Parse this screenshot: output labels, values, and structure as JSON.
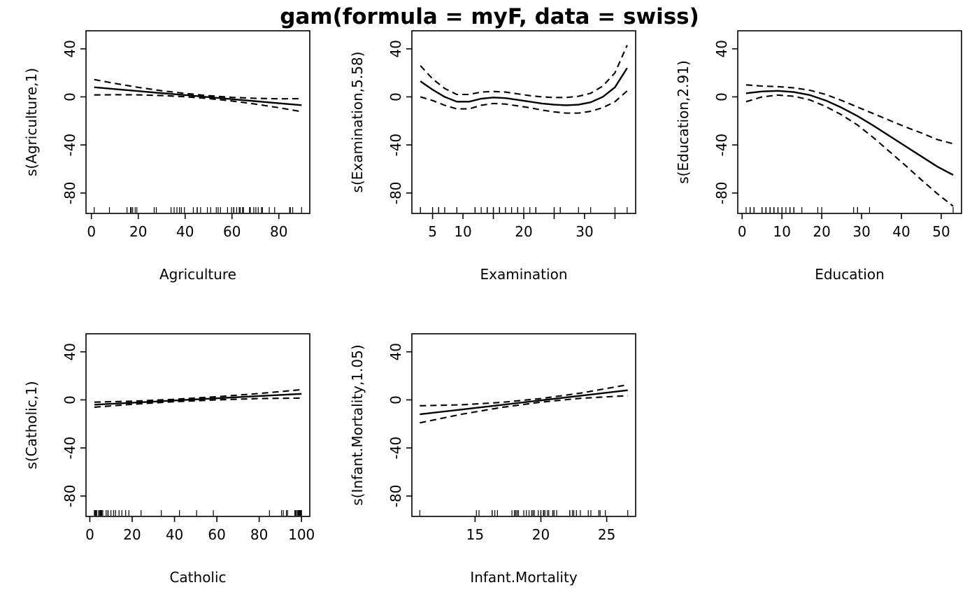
{
  "title": "gam(formula = myF, data = swiss)",
  "colors": {
    "background": "#ffffff",
    "line": "#000000"
  },
  "chart_data": [
    {
      "type": "line",
      "id": "agriculture",
      "xlabel": "Agriculture",
      "ylabel": "s(Agriculture,1)",
      "xlim": [
        -2.3,
        93.2
      ],
      "ylim": [
        -97,
        55
      ],
      "xticks": [
        0,
        20,
        40,
        60,
        80
      ],
      "xtick_labels": [
        "0",
        "20",
        "40",
        "60",
        "80"
      ],
      "yticks": [
        -80,
        -40,
        0,
        40
      ],
      "ytick_labels": [
        "-80",
        "-40",
        "0",
        "40"
      ],
      "series": [
        {
          "name": "fit",
          "style": "solid",
          "x": [
            1.2,
            10,
            20,
            30,
            40,
            50,
            60,
            70,
            80,
            89.7
          ],
          "y": [
            8.0,
            6.5,
            4.8,
            3.1,
            1.5,
            -0.2,
            -1.9,
            -3.6,
            -5.3,
            -6.9
          ]
        },
        {
          "name": "upper-ci",
          "style": "dashed",
          "x": [
            1.2,
            10,
            20,
            30,
            40,
            50,
            60,
            70,
            80,
            89.7
          ],
          "y": [
            14.4,
            11.2,
            7.9,
            5.1,
            2.9,
            1.0,
            -0.4,
            -1.2,
            -1.6,
            -1.5
          ]
        },
        {
          "name": "lower-ci",
          "style": "dashed",
          "x": [
            1.2,
            10,
            20,
            30,
            40,
            50,
            60,
            70,
            80,
            89.7
          ],
          "y": [
            1.6,
            1.8,
            1.7,
            1.1,
            0.1,
            -1.4,
            -3.4,
            -6.0,
            -9.0,
            -12.3
          ]
        }
      ],
      "rug": [
        17,
        45.1,
        39.7,
        36.5,
        43.5,
        35.3,
        70.2,
        67.8,
        53.3,
        45.2,
        64.5,
        62,
        67.5,
        60.7,
        69.3,
        72.6,
        34,
        19.4,
        15.2,
        73,
        59.8,
        55.1,
        50.9,
        54.1,
        71.2,
        58.1,
        63.5,
        60.8,
        26.8,
        49.5,
        85.9,
        84.9,
        89.7,
        78.2,
        64.9,
        75.9,
        84.6,
        63.1,
        38.4,
        7.7,
        16.7,
        17.6,
        37.6,
        18.7,
        1.2,
        46.6,
        27.7
      ]
    },
    {
      "type": "line",
      "id": "examination",
      "xlabel": "Examination",
      "ylabel": "s(Examination,5.58)",
      "xlim": [
        1.6,
        38.4
      ],
      "ylim": [
        -97,
        55
      ],
      "xticks": [
        5,
        10,
        15,
        20,
        25,
        30,
        35
      ],
      "xtick_labels": [
        "5",
        "10",
        "",
        "20",
        "",
        "30",
        ""
      ],
      "yticks": [
        -80,
        -40,
        0,
        40
      ],
      "ytick_labels": [
        "-80",
        "-40",
        "0",
        "40"
      ],
      "series": [
        {
          "name": "fit",
          "style": "solid",
          "x": [
            3,
            5,
            7,
            9,
            11,
            13,
            15,
            17,
            19,
            21,
            23,
            25,
            27,
            29,
            31,
            33,
            35,
            37
          ],
          "y": [
            13,
            6,
            0,
            -4,
            -4,
            -1.5,
            -0.5,
            -1,
            -2.5,
            -4,
            -5.5,
            -6.5,
            -7,
            -6.5,
            -4.5,
            0,
            8,
            24
          ]
        },
        {
          "name": "upper-ci",
          "style": "dashed",
          "x": [
            3,
            5,
            7,
            9,
            11,
            13,
            15,
            17,
            19,
            21,
            23,
            25,
            27,
            29,
            31,
            33,
            35,
            37
          ],
          "y": [
            26,
            15,
            7,
            2,
            2,
            4,
            4.5,
            4,
            2.5,
            1,
            0,
            -0.5,
            -0.5,
            0.5,
            3,
            9,
            20,
            43
          ]
        },
        {
          "name": "lower-ci",
          "style": "dashed",
          "x": [
            3,
            5,
            7,
            9,
            11,
            13,
            15,
            17,
            19,
            21,
            23,
            25,
            27,
            29,
            31,
            33,
            35,
            37
          ],
          "y": [
            0,
            -3,
            -7,
            -10,
            -10,
            -7,
            -5.5,
            -6,
            -7.5,
            -9,
            -11,
            -12.5,
            -13.5,
            -13.5,
            -12,
            -9,
            -4,
            5
          ]
        }
      ],
      "rug": [
        15,
        6,
        5,
        12,
        17,
        9,
        16,
        14,
        12,
        16,
        14,
        21,
        14,
        19,
        22,
        18,
        17,
        26,
        31,
        19,
        22,
        14,
        22,
        20,
        12,
        14,
        6,
        16,
        25,
        15,
        3,
        7,
        5,
        12,
        7,
        9,
        3,
        13,
        26,
        29,
        22,
        35,
        15,
        25,
        37,
        16,
        22
      ]
    },
    {
      "type": "line",
      "id": "education",
      "xlabel": "Education",
      "ylabel": "s(Education,2.91)",
      "xlim": [
        -1.1,
        55.1
      ],
      "ylim": [
        -97,
        55
      ],
      "xticks": [
        0,
        10,
        20,
        30,
        40,
        50
      ],
      "xtick_labels": [
        "0",
        "10",
        "20",
        "30",
        "40",
        "50"
      ],
      "yticks": [
        -80,
        -40,
        0,
        40
      ],
      "ytick_labels": [
        "-80",
        "-40",
        "0",
        "40"
      ],
      "series": [
        {
          "name": "fit",
          "style": "solid",
          "x": [
            1,
            5,
            9,
            13,
            17,
            21,
            25,
            29,
            33,
            37,
            41,
            45,
            49,
            53
          ],
          "y": [
            3,
            4.5,
            5,
            4,
            1.5,
            -3,
            -9,
            -16,
            -24,
            -32.5,
            -41,
            -49.5,
            -58,
            -65
          ]
        },
        {
          "name": "upper-ci",
          "style": "dashed",
          "x": [
            1,
            5,
            9,
            13,
            17,
            21,
            25,
            29,
            33,
            37,
            41,
            45,
            49,
            53
          ],
          "y": [
            10,
            9,
            8.5,
            7.5,
            5.5,
            2,
            -3,
            -8.5,
            -14,
            -19.5,
            -25,
            -30,
            -35.5,
            -39
          ]
        },
        {
          "name": "lower-ci",
          "style": "dashed",
          "x": [
            1,
            5,
            9,
            13,
            17,
            21,
            25,
            29,
            33,
            37,
            41,
            45,
            49,
            53
          ],
          "y": [
            -4,
            0,
            1.5,
            0.5,
            -2.5,
            -8,
            -15,
            -23.5,
            -34,
            -45.5,
            -57,
            -69,
            -80.5,
            -91
          ]
        }
      ],
      "rug": [
        12,
        9,
        5,
        7,
        15,
        7,
        7,
        8,
        7,
        13,
        6,
        12,
        7,
        12,
        5,
        2,
        8,
        28,
        20,
        9,
        10,
        3,
        12,
        6,
        1,
        8,
        3,
        10,
        19,
        8,
        2,
        6,
        2,
        6,
        3,
        9,
        3,
        13,
        12,
        11,
        13,
        32,
        7,
        7,
        53,
        29,
        29
      ]
    },
    {
      "type": "line",
      "id": "catholic",
      "xlabel": "Catholic",
      "ylabel": "s(Catholic,1)",
      "xlim": [
        -1.8,
        103.9
      ],
      "ylim": [
        -97,
        55
      ],
      "xticks": [
        0,
        20,
        40,
        60,
        80,
        100
      ],
      "xtick_labels": [
        "0",
        "20",
        "40",
        "60",
        "80",
        "100"
      ],
      "yticks": [
        -80,
        -40,
        0,
        40
      ],
      "ytick_labels": [
        "-80",
        "-40",
        "0",
        "40"
      ],
      "series": [
        {
          "name": "fit",
          "style": "solid",
          "x": [
            2.15,
            20,
            40,
            60,
            80,
            100
          ],
          "y": [
            -4.0,
            -2.4,
            -0.5,
            1.3,
            3.2,
            5.0
          ]
        },
        {
          "name": "upper-ci",
          "style": "dashed",
          "x": [
            2.15,
            20,
            40,
            60,
            80,
            100
          ],
          "y": [
            -1.9,
            -1.1,
            0.5,
            2.6,
            5.3,
            8.5
          ]
        },
        {
          "name": "lower-ci",
          "style": "dashed",
          "x": [
            2.15,
            20,
            40,
            60,
            80,
            100
          ],
          "y": [
            -6.1,
            -3.7,
            -1.5,
            0.0,
            1.1,
            1.5
          ]
        }
      ],
      "rug": [
        9.96,
        84.84,
        93.4,
        33.77,
        5.16,
        90.57,
        92.85,
        97.16,
        97.67,
        91.38,
        98.61,
        8.52,
        2.27,
        4.43,
        2.82,
        24.2,
        3.3,
        12.11,
        2.15,
        2.84,
        5.23,
        4.52,
        15.14,
        4.2,
        2.4,
        5.23,
        2.56,
        7.72,
        18.46,
        6.1,
        99.71,
        99.68,
        100,
        98.96,
        98.22,
        99.06,
        99.46,
        96.83,
        5.62,
        13.79,
        11.22,
        16.92,
        4.97,
        8.65,
        42.34,
        50.43,
        58.33
      ]
    },
    {
      "type": "line",
      "id": "infant-mortality",
      "xlabel": "Infant.Mortality",
      "ylabel": "s(Infant.Mortality,1.05)",
      "xlim": [
        10.2,
        27.2
      ],
      "ylim": [
        -97,
        55
      ],
      "xticks": [
        15,
        20,
        25
      ],
      "xtick_labels": [
        "15",
        "20",
        "25"
      ],
      "yticks": [
        -80,
        -40,
        0,
        40
      ],
      "ytick_labels": [
        "-80",
        "-40",
        "0",
        "40"
      ],
      "series": [
        {
          "name": "fit",
          "style": "solid",
          "x": [
            10.8,
            14,
            17,
            20,
            23,
            26.6
          ],
          "y": [
            -12.0,
            -8.0,
            -4.2,
            -0.4,
            3.4,
            8.0
          ]
        },
        {
          "name": "upper-ci",
          "style": "dashed",
          "x": [
            10.8,
            14,
            17,
            20,
            23,
            26.6
          ],
          "y": [
            -4.9,
            -4.1,
            -2.1,
            1.1,
            5.6,
            12.6
          ]
        },
        {
          "name": "lower-ci",
          "style": "dashed",
          "x": [
            10.8,
            14,
            17,
            20,
            23,
            26.6
          ],
          "y": [
            -19.1,
            -11.9,
            -6.3,
            -1.9,
            1.3,
            3.5
          ]
        }
      ],
      "rug": [
        22.2,
        22.2,
        20.2,
        20.3,
        20.6,
        26.6,
        23.6,
        24.9,
        21,
        24.4,
        24.5,
        16.5,
        19.1,
        22.7,
        18.7,
        21.2,
        20,
        20.2,
        10.8,
        20,
        18,
        22.4,
        16.7,
        15.3,
        21,
        23.8,
        18,
        16.3,
        20.9,
        22.5,
        15.1,
        19.8,
        18.3,
        19.4,
        20.2,
        17.8,
        16.3,
        18.1,
        20.3,
        20.5,
        18.9,
        23,
        20,
        19.5,
        18,
        18.2,
        19.3
      ]
    }
  ]
}
